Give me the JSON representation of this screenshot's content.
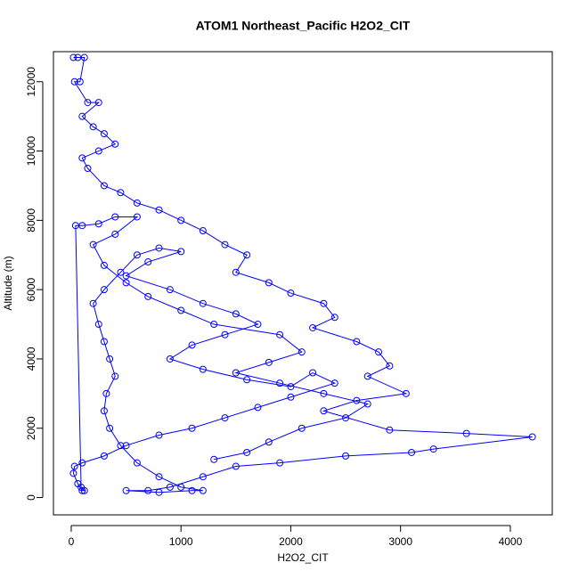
{
  "chart_data": {
    "type": "line",
    "markers": true,
    "title": "ATOM1 Northeast_Pacific H2O2_CIT",
    "x_label": "H2O2_CIT",
    "y_label": "Altitude (m)",
    "x": [
      20,
      60,
      120,
      80,
      30,
      150,
      250,
      100,
      200,
      300,
      400,
      250,
      100,
      150,
      300,
      450,
      600,
      800,
      1000,
      1200,
      1400,
      1600,
      1500,
      1800,
      2000,
      2300,
      2400,
      2200,
      2600,
      2800,
      2900,
      2700,
      3050,
      2600,
      2300,
      2900,
      3600,
      4200,
      3300,
      3100,
      2500,
      1900,
      1500,
      1200,
      900,
      700,
      500,
      800,
      1100,
      1200,
      1000,
      800,
      600,
      450,
      350,
      300,
      320,
      400,
      350,
      300,
      250,
      200,
      300,
      450,
      600,
      800,
      1000,
      700,
      500,
      900,
      1200,
      1500,
      1700,
      1400,
      1100,
      900,
      1200,
      1600,
      2000,
      2200,
      2400,
      2000,
      1700,
      1400,
      1100,
      800,
      500,
      300,
      100,
      30,
      20,
      60,
      100,
      120,
      90,
      40,
      100,
      250,
      400,
      600,
      400,
      200,
      300,
      500,
      700,
      1000,
      1300,
      1900,
      2100,
      1800,
      1500,
      1900,
      2300,
      2700,
      2500,
      2100,
      1800,
      1600,
      1300
    ],
    "series": [
      {
        "name": "Altitude (m)",
        "color": "#0000ff",
        "values": [
          12700,
          12700,
          12700,
          12000,
          12000,
          11400,
          11400,
          11000,
          10700,
          10500,
          10200,
          10000,
          9800,
          9500,
          9000,
          8800,
          8500,
          8300,
          8000,
          7700,
          7300,
          7000,
          6500,
          6200,
          5900,
          5600,
          5200,
          4900,
          4500,
          4200,
          3800,
          3500,
          3000,
          2800,
          2500,
          1950,
          1850,
          1750,
          1400,
          1300,
          1200,
          1000,
          900,
          600,
          300,
          200,
          200,
          150,
          200,
          200,
          300,
          600,
          1000,
          1500,
          2000,
          2500,
          3000,
          3500,
          4000,
          4500,
          5000,
          5600,
          6000,
          6500,
          7000,
          7200,
          7100,
          6800,
          6400,
          6000,
          5600,
          5300,
          5000,
          4700,
          4400,
          4000,
          3700,
          3400,
          3200,
          3600,
          3300,
          2900,
          2600,
          2300,
          2000,
          1800,
          1500,
          1200,
          1000,
          900,
          700,
          400,
          200,
          200,
          300,
          7850,
          7850,
          7900,
          8100,
          8100,
          7600,
          7300,
          6700,
          6200,
          5800,
          5400,
          5000,
          4700,
          4200,
          3900,
          3600,
          3300,
          3000,
          2700,
          2300,
          2000,
          1600,
          1300,
          1100
        ]
      }
    ],
    "xlim": [
      -162,
      4382
    ],
    "ylim": [
      -500,
      12868
    ],
    "xticks": [
      0,
      1000,
      2000,
      3000,
      4000
    ],
    "yticks": [
      0,
      2000,
      4000,
      6000,
      8000,
      10000,
      12000
    ]
  }
}
